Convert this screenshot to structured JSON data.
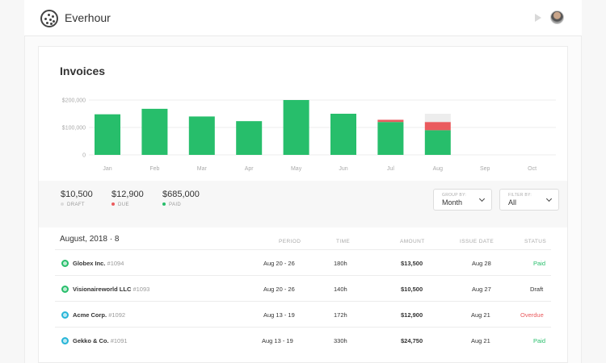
{
  "app": {
    "brand": "Everhour"
  },
  "card": {
    "title": "Invoices"
  },
  "chart_data": {
    "type": "bar",
    "categories": [
      "Jan",
      "Feb",
      "Mar",
      "Apr",
      "May",
      "Jun",
      "Jul",
      "Aug",
      "Sep",
      "Oct"
    ],
    "series": [
      {
        "name": "paid",
        "color": "#27be6b",
        "values": [
          148000,
          168000,
          140000,
          123000,
          200000,
          150000,
          120000,
          90000,
          0,
          0
        ]
      },
      {
        "name": "due",
        "color": "#ea5b5e",
        "values": [
          0,
          0,
          0,
          0,
          0,
          0,
          8000,
          30000,
          0,
          0
        ]
      },
      {
        "name": "draft",
        "color": "#ededed",
        "values": [
          0,
          0,
          0,
          0,
          0,
          0,
          0,
          30000,
          0,
          0
        ]
      }
    ],
    "yticks": [
      "$200,000",
      "$100,000",
      "0"
    ],
    "ylim": [
      0,
      200000
    ],
    "grid": true,
    "stacked": true
  },
  "summary": {
    "items": [
      {
        "value": "$10,500",
        "label": "DRAFT",
        "color": "#dcdcdc"
      },
      {
        "value": "$12,900",
        "label": "DUE",
        "color": "#ea5b5e"
      },
      {
        "value": "$685,000",
        "label": "PAID",
        "color": "#27be6b"
      }
    ],
    "group_by": {
      "label": "GROUP BY:",
      "value": "Month"
    },
    "filter_by": {
      "label": "FILTER BY:",
      "value": "All"
    }
  },
  "list": {
    "title": "August, 2018 · 8",
    "columns": {
      "period": "PERIOD",
      "time": "TIME",
      "amount": "AMOUNT",
      "issue_date": "ISSUE DATE",
      "status": "STATUS"
    },
    "rows": [
      {
        "name": "Globex Inc.",
        "number": "#1094",
        "period": "Aug 20 - 26",
        "time": "180h",
        "amount": "$13,500",
        "issue_date": "Aug 28",
        "status": "Paid",
        "status_color": "#27be6b",
        "icon_color": "#27be6b"
      },
      {
        "name": "Visionaireworld LLC",
        "number": "#1093",
        "period": "Aug 20 - 26",
        "time": "140h",
        "amount": "$10,500",
        "issue_date": "Aug 27",
        "status": "Draft",
        "status_color": "#333333",
        "icon_color": "#27be6b"
      },
      {
        "name": "Acme Corp.",
        "number": "#1092",
        "period": "Aug 13 - 19",
        "time": "172h",
        "amount": "$12,900",
        "issue_date": "Aug 21",
        "status": "Overdue",
        "status_color": "#ea5b5e",
        "icon_color": "#26b5d8"
      },
      {
        "name": "Gekko & Co.",
        "number": "#1091",
        "period": "Aug 13 - 19",
        "time": "330h",
        "amount": "$24,750",
        "issue_date": "Aug 21",
        "status": "Paid",
        "status_color": "#27be6b",
        "icon_color": "#26b5d8"
      }
    ]
  },
  "icons": {
    "logo": "everhour-logo-icon",
    "timer": "play-icon",
    "user": "avatar",
    "chevron": "chevron-down-icon",
    "client": "client-icon"
  }
}
